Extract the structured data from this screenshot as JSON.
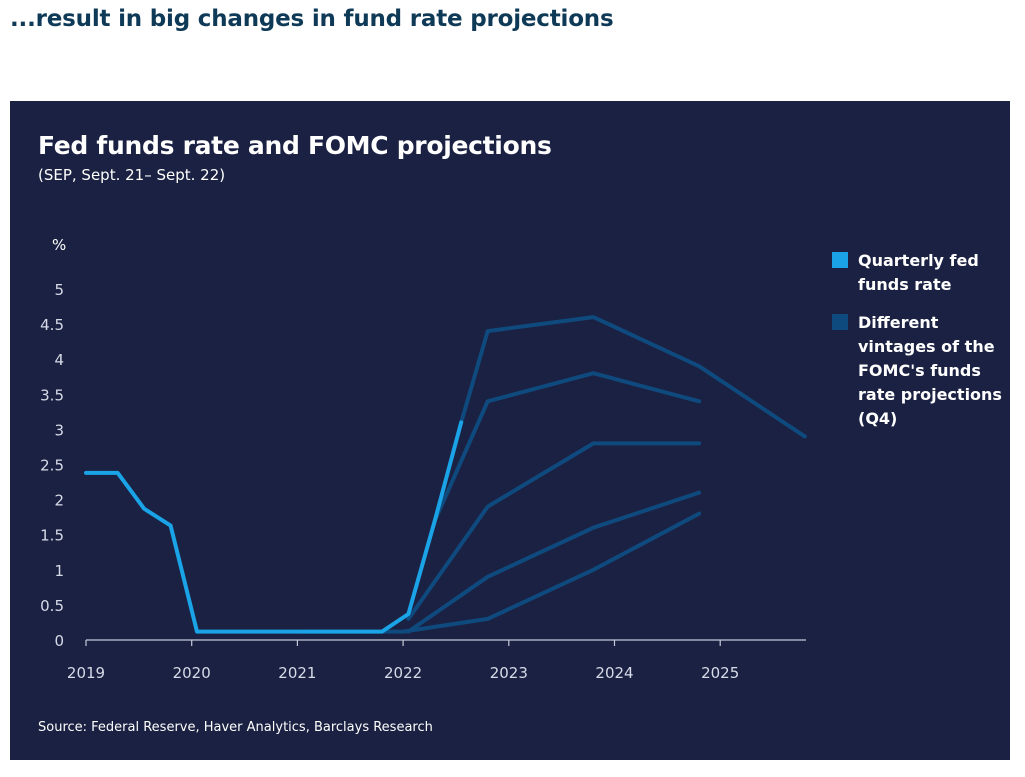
{
  "page": {
    "heading": "...result in big changes in fund rate projections"
  },
  "chart_data": {
    "type": "line",
    "title": "Fed funds rate and FOMC projections",
    "subtitle": "(SEP, Sept. 21– Sept. 22)",
    "ylabel": "%",
    "xlabel": "",
    "ylim": [
      0,
      5
    ],
    "yticks": [
      "0",
      "0.5",
      "1",
      "1.5",
      "2",
      "2.5",
      "3",
      "3.5",
      "4",
      "4.5",
      "5"
    ],
    "xlim": [
      2019,
      2026
    ],
    "xticks": [
      {
        "value": 2019,
        "label": "2019"
      },
      {
        "value": 2020,
        "label": "2020"
      },
      {
        "value": 2021,
        "label": "2021"
      },
      {
        "value": 2022,
        "label": "2022"
      },
      {
        "value": 2023,
        "label": "2023"
      },
      {
        "value": 2024,
        "label": "2024"
      },
      {
        "value": 2025,
        "label": "2025"
      }
    ],
    "grid": false,
    "legend_position": "right",
    "colors": {
      "background": "#1b2142",
      "actual": "#1aa3e6",
      "projection": "#0f4a7e",
      "axis": "#c5cad8"
    },
    "actual_series": {
      "name": "Quarterly fed funds rate",
      "color": "#1aa3e6",
      "x": [
        2019.0,
        2019.3,
        2019.55,
        2019.8,
        2020.05,
        2020.3,
        2020.55,
        2020.8,
        2021.05,
        2021.3,
        2021.55,
        2021.8,
        2022.05,
        2022.3,
        2022.55
      ],
      "y": [
        2.38,
        2.38,
        1.87,
        1.63,
        0.12,
        0.12,
        0.12,
        0.12,
        0.12,
        0.12,
        0.12,
        0.12,
        0.37,
        1.7,
        3.1
      ]
    },
    "projection_series_name": "Different vintages of the FOMC's funds rate projections (Q4)",
    "projection_series": [
      {
        "x": [
          2021.05,
          2022.0,
          2022.8
        ],
        "y": [
          0.12,
          0.12,
          0.3
        ],
        "end_x": [
          2023.8,
          2024.8
        ],
        "end_y": [
          1.0,
          1.8
        ]
      },
      {
        "x": [
          2022.05,
          2022.8,
          2023.8,
          2024.8
        ],
        "y": [
          0.12,
          0.9,
          1.6,
          2.1
        ]
      },
      {
        "x": [
          2022.05,
          2022.8,
          2023.8,
          2024.8
        ],
        "y": [
          0.3,
          1.9,
          2.8,
          2.8
        ]
      },
      {
        "x": [
          2022.3,
          2022.8,
          2023.8,
          2024.8
        ],
        "y": [
          1.7,
          3.4,
          3.8,
          3.4
        ]
      },
      {
        "x": [
          2022.55,
          2022.8,
          2023.8,
          2024.8,
          2025.8
        ],
        "y": [
          3.1,
          4.4,
          4.6,
          3.9,
          2.9
        ]
      }
    ],
    "source": "Source: Federal Reserve, Haver Analytics, Barclays Research"
  },
  "legend": {
    "items": [
      {
        "label": "Quarterly fed funds rate",
        "color": "#1aa3e6"
      },
      {
        "label": "Different vintages of the FOMC's funds rate projections (Q4)",
        "color": "#0f4a7e"
      }
    ]
  }
}
